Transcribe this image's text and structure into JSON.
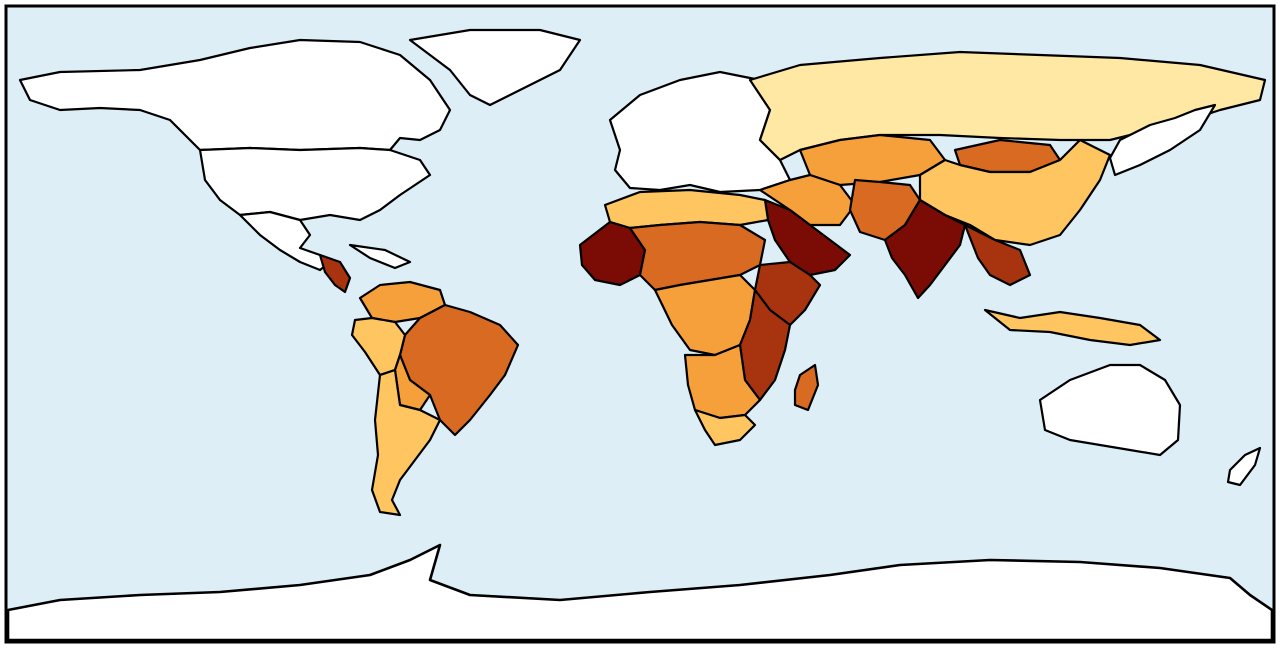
{
  "map": {
    "ocean_color": "#ddeef6",
    "frame_color": "#000000",
    "palette": {
      "none": "#ffffff",
      "very_low": "#ffe8a3",
      "low": "#fec560",
      "medium": "#f6a03b",
      "high": "#d86a21",
      "very_high": "#a8340f",
      "extreme": "#7a0b05"
    },
    "regions": [
      {
        "name": "canada-alaska",
        "level": "none"
      },
      {
        "name": "greenland",
        "level": "none"
      },
      {
        "name": "usa",
        "level": "none"
      },
      {
        "name": "mexico",
        "level": "none"
      },
      {
        "name": "central-america",
        "level": "very_high"
      },
      {
        "name": "caribbean",
        "level": "none"
      },
      {
        "name": "colombia-venezuela",
        "level": "medium"
      },
      {
        "name": "brazil",
        "level": "high"
      },
      {
        "name": "peru",
        "level": "low"
      },
      {
        "name": "bolivia",
        "level": "medium"
      },
      {
        "name": "argentina-chile",
        "level": "low"
      },
      {
        "name": "europe",
        "level": "none"
      },
      {
        "name": "russia",
        "level": "very_low"
      },
      {
        "name": "kazakhstan",
        "level": "medium"
      },
      {
        "name": "mongolia",
        "level": "high"
      },
      {
        "name": "china",
        "level": "low"
      },
      {
        "name": "middle-east",
        "level": "medium"
      },
      {
        "name": "arabian-peninsula",
        "level": "extreme"
      },
      {
        "name": "pakistan-afghanistan",
        "level": "high"
      },
      {
        "name": "india",
        "level": "extreme"
      },
      {
        "name": "southeast-asia",
        "level": "very_high"
      },
      {
        "name": "indonesia",
        "level": "low"
      },
      {
        "name": "north-africa",
        "level": "low"
      },
      {
        "name": "sahel",
        "level": "high"
      },
      {
        "name": "west-africa",
        "level": "extreme"
      },
      {
        "name": "horn-of-africa",
        "level": "very_high"
      },
      {
        "name": "central-africa",
        "level": "medium"
      },
      {
        "name": "east-africa",
        "level": "very_high"
      },
      {
        "name": "southern-africa",
        "level": "medium"
      },
      {
        "name": "south-africa",
        "level": "low"
      },
      {
        "name": "madagascar",
        "level": "high"
      },
      {
        "name": "japan-korea",
        "level": "none"
      },
      {
        "name": "australia",
        "level": "none"
      },
      {
        "name": "new-zealand",
        "level": "none"
      },
      {
        "name": "antarctica",
        "level": "none"
      }
    ]
  }
}
